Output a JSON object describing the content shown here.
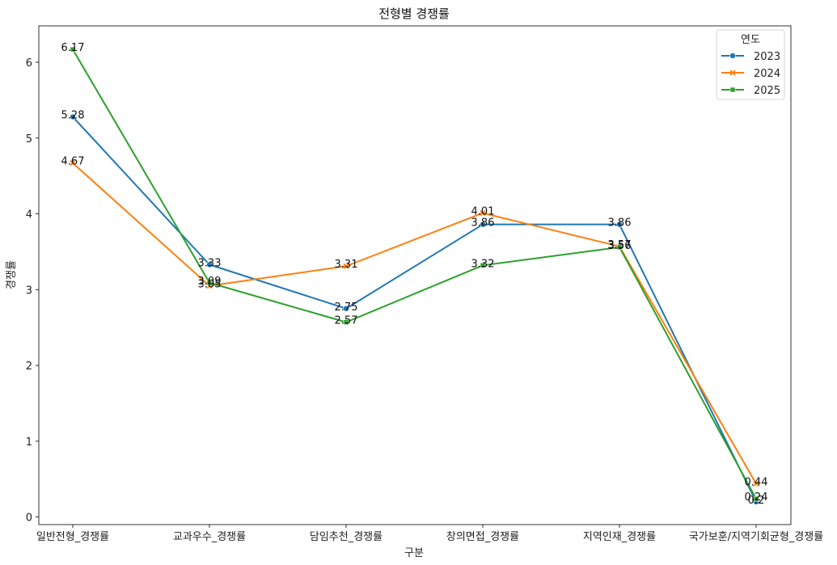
{
  "chart_data": {
    "type": "line",
    "title": "전형별 경쟁률",
    "xlabel": "구분",
    "ylabel": "경쟁률",
    "categories": [
      "일반전형_경쟁률",
      "교과우수_경쟁률",
      "담임추천_경쟁률",
      "창의면접_경쟁률",
      "지역인재_경쟁률",
      "국가보훈/지역기회균형_경쟁률"
    ],
    "yticks": [
      0,
      1,
      2,
      3,
      4,
      5,
      6
    ],
    "ylim": [
      -0.1,
      6.48
    ],
    "grid": false,
    "legend": {
      "title": "연도",
      "position": "top-right"
    },
    "series": [
      {
        "name": "2023",
        "color": "#1f77b4",
        "marker": "circle",
        "values": [
          5.28,
          3.33,
          2.75,
          3.86,
          3.86,
          0.2
        ]
      },
      {
        "name": "2024",
        "color": "#ff7f0e",
        "marker": "x",
        "values": [
          4.67,
          3.05,
          3.31,
          4.01,
          3.57,
          0.44
        ]
      },
      {
        "name": "2025",
        "color": "#2ca02c",
        "marker": "square",
        "values": [
          6.17,
          3.09,
          2.57,
          3.32,
          3.56,
          0.24
        ]
      }
    ]
  }
}
